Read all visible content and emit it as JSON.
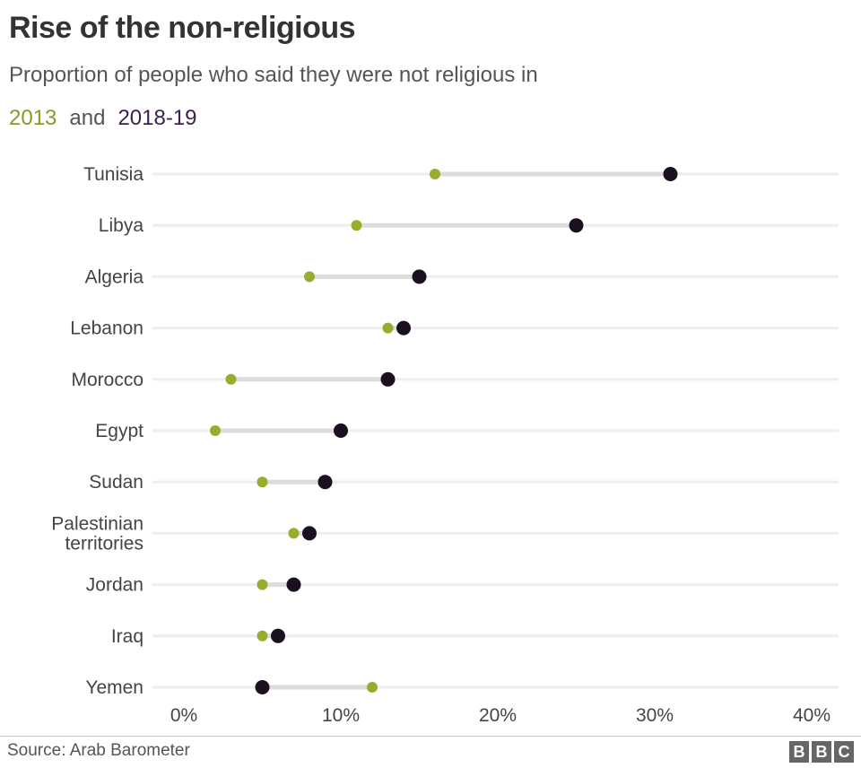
{
  "header": {
    "title": "Rise of the non-religious",
    "subtitle": "Proportion of people who said they were not religious in",
    "legend_2013": "2013",
    "legend_and": "and",
    "legend_2018": "2018-19"
  },
  "footer": {
    "source": "Source: Arab Barometer",
    "logo": [
      "B",
      "B",
      "C"
    ]
  },
  "colors": {
    "y2013": "#9aab2e",
    "y2018": "#1a1020",
    "connector": "#dcdcdc",
    "grid": "#eeeeee"
  },
  "chart_data": {
    "type": "dumbbell",
    "title": "Rise of the non-religious",
    "x_ticks": [
      "0%",
      "10%",
      "20%",
      "30%",
      "40%"
    ],
    "xlim": [
      0,
      40
    ],
    "grid": true,
    "series_names": [
      "2013",
      "2018-19"
    ],
    "categories": [
      {
        "label": [
          "Tunisia"
        ],
        "v2013": 16,
        "v2018": 31
      },
      {
        "label": [
          "Libya"
        ],
        "v2013": 11,
        "v2018": 25
      },
      {
        "label": [
          "Algeria"
        ],
        "v2013": 8,
        "v2018": 15
      },
      {
        "label": [
          "Lebanon"
        ],
        "v2013": 13,
        "v2018": 14
      },
      {
        "label": [
          "Morocco"
        ],
        "v2013": 3,
        "v2018": 13
      },
      {
        "label": [
          "Egypt"
        ],
        "v2013": 2,
        "v2018": 10
      },
      {
        "label": [
          "Sudan"
        ],
        "v2013": 5,
        "v2018": 9
      },
      {
        "label": [
          "Palestinian",
          "territories"
        ],
        "v2013": 7,
        "v2018": 8
      },
      {
        "label": [
          "Jordan"
        ],
        "v2013": 5,
        "v2018": 7
      },
      {
        "label": [
          "Iraq"
        ],
        "v2013": 5,
        "v2018": 6
      },
      {
        "label": [
          "Yemen"
        ],
        "v2013": 12,
        "v2018": 5
      }
    ]
  }
}
